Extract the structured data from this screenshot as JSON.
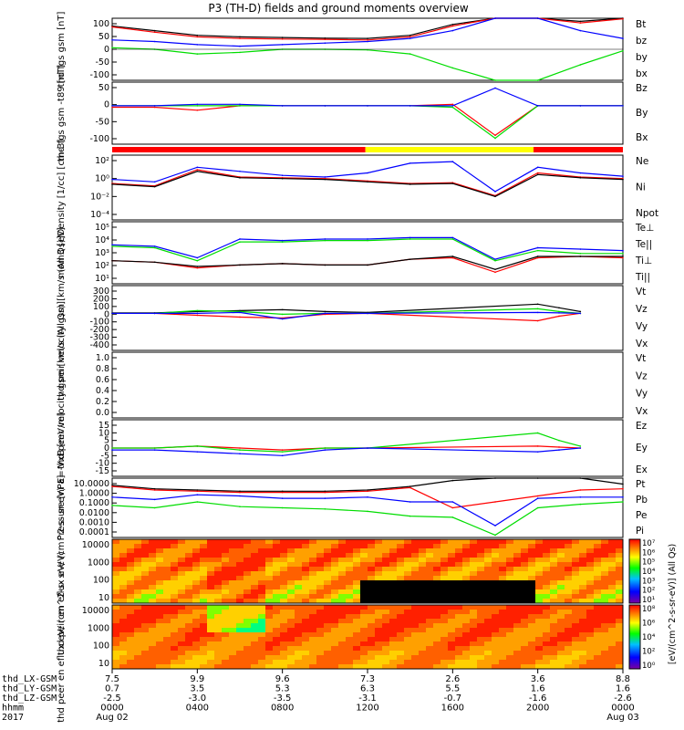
{
  "title": "P3 (TH-D) fields and ground moments overview",
  "colors": {
    "black": "#000000",
    "red": "#ff0000",
    "green": "#00dd00",
    "blue": "#0000ff",
    "yellow": "#ffff00"
  },
  "time_axis": {
    "rows": [
      {
        "name": "thd_LX-GSM",
        "values": [
          "7.5",
          "9.9",
          "9.6",
          "7.3",
          "2.6",
          "3.6",
          "8.8"
        ]
      },
      {
        "name": "thd_LY-GSM",
        "values": [
          "0.7",
          "3.5",
          "5.3",
          "6.3",
          "5.5",
          "1.6",
          "1.6"
        ]
      },
      {
        "name": "thd_LZ-GSM",
        "values": [
          "-2.5",
          "-3.0",
          "-3.5",
          "-3.1",
          "-0.7",
          "-1.6",
          "-2.6"
        ]
      },
      {
        "name": "hhmm",
        "values": [
          "0000",
          "0400",
          "0800",
          "1200",
          "1600",
          "2000",
          "0000"
        ]
      },
      {
        "name": "2017",
        "values": [
          "Aug 02",
          "",
          "",
          "",
          "",
          "",
          "Aug 03"
        ]
      }
    ]
  },
  "chart_data": [
    {
      "type": "line",
      "ylabel": "thd fgs gsm [nT]",
      "yticks": [
        "100",
        "50",
        "0",
        "-50",
        "-100"
      ],
      "ylim": [
        -100,
        100
      ],
      "legend": [
        "Bt",
        "bz",
        "by",
        "bx"
      ],
      "x": [
        0,
        2,
        4,
        6,
        8,
        10,
        12,
        14,
        16,
        18,
        20,
        22,
        24
      ],
      "series": [
        {
          "name": "Bt",
          "color": "#000000",
          "values": [
            75,
            60,
            45,
            40,
            38,
            36,
            35,
            45,
            80,
            100,
            100,
            90,
            100
          ]
        },
        {
          "name": "bz",
          "color": "#ff0000",
          "values": [
            72,
            55,
            40,
            35,
            33,
            32,
            30,
            40,
            75,
            100,
            100,
            85,
            98
          ]
        },
        {
          "name": "by",
          "color": "#00dd00",
          "values": [
            5,
            0,
            -15,
            -10,
            0,
            0,
            -2,
            -15,
            -60,
            -100,
            -100,
            -50,
            -5
          ]
        },
        {
          "name": "bx",
          "color": "#0000ff",
          "values": [
            30,
            25,
            15,
            10,
            15,
            20,
            25,
            35,
            60,
            100,
            100,
            60,
            35
          ]
        }
      ]
    },
    {
      "type": "line",
      "ylabel": "thd fgs gsm -t89 [nT]",
      "yticks": [
        "50",
        "0",
        "-50",
        "-100"
      ],
      "ylim": [
        -130,
        80
      ],
      "legend": [
        "Bz",
        "By",
        "Bx"
      ],
      "x": [
        0,
        2,
        4,
        6,
        8,
        10,
        12,
        14,
        16,
        18,
        20,
        22,
        24
      ],
      "series": [
        {
          "name": "Bz",
          "color": "#ff0000",
          "values": [
            -5,
            -5,
            -15,
            0,
            0,
            0,
            0,
            0,
            5,
            -100,
            0,
            0,
            0
          ]
        },
        {
          "name": "By",
          "color": "#00dd00",
          "values": [
            0,
            0,
            0,
            0,
            0,
            0,
            0,
            0,
            -5,
            -110,
            0,
            0,
            0
          ]
        },
        {
          "name": "Bx",
          "color": "#0000ff",
          "values": [
            0,
            0,
            5,
            5,
            0,
            0,
            0,
            0,
            0,
            60,
            0,
            0,
            0
          ]
        }
      ]
    },
    {
      "type": "line",
      "ylabel": "Density [1/cc] [cm-3]",
      "yticks": [
        "10²",
        "10⁰",
        "10⁻²",
        "10⁻⁴"
      ],
      "legend": [
        "Ne",
        "Ni",
        "Npot"
      ],
      "x": [
        0,
        2,
        4,
        6,
        8,
        10,
        12,
        14,
        16,
        18,
        20,
        22,
        24
      ],
      "series": [
        {
          "name": "Ne",
          "color": "#ff0000",
          "values": [
            -0.5,
            -0.8,
            1.2,
            0.3,
            0.2,
            0.1,
            -0.2,
            -0.5,
            -0.4,
            -2.0,
            0.8,
            0.3,
            0.1
          ]
        },
        {
          "name": "Ni",
          "color": "#000000",
          "values": [
            -0.6,
            -0.9,
            1.0,
            0.2,
            0.1,
            0.0,
            -0.3,
            -0.6,
            -0.5,
            -2.1,
            0.6,
            0.2,
            0.0
          ]
        },
        {
          "name": "Npot",
          "color": "#0000ff",
          "values": [
            0.0,
            -0.3,
            1.5,
            1.0,
            0.5,
            0.3,
            0.8,
            2.0,
            2.2,
            -1.5,
            1.5,
            0.8,
            0.4
          ]
        }
      ]
    },
    {
      "type": "line",
      "ylabel": "mom3 [eV]",
      "yticks": [
        "10⁵",
        "10⁴",
        "10³",
        "10²",
        "10¹"
      ],
      "legend": [
        "Te⊥",
        "Te||",
        "Ti⊥",
        "Ti||"
      ],
      "x": [
        0,
        2,
        4,
        6,
        8,
        10,
        12,
        14,
        16,
        18,
        20,
        22,
        24
      ],
      "series": [
        {
          "name": "Te⊥",
          "color": "#ff0000",
          "values": [
            2.3,
            2.2,
            1.8,
            2.0,
            2.1,
            2.0,
            2.0,
            2.4,
            2.5,
            1.5,
            2.5,
            2.6,
            2.5
          ]
        },
        {
          "name": "Te||",
          "color": "#000000",
          "values": [
            2.3,
            2.2,
            1.9,
            2.0,
            2.1,
            2.0,
            2.0,
            2.4,
            2.6,
            1.7,
            2.6,
            2.6,
            2.6
          ]
        },
        {
          "name": "Ti⊥",
          "color": "#0000ff",
          "values": [
            3.4,
            3.3,
            2.5,
            3.8,
            3.7,
            3.8,
            3.8,
            3.9,
            3.9,
            2.4,
            3.2,
            3.1,
            3.0
          ]
        },
        {
          "name": "Ti||",
          "color": "#00dd00",
          "values": [
            3.3,
            3.2,
            2.3,
            3.6,
            3.6,
            3.7,
            3.7,
            3.8,
            3.8,
            2.3,
            3.0,
            2.8,
            2.8
          ]
        }
      ]
    },
    {
      "type": "line",
      "ylabel": "thd peir velocity gsm [km/s (All Qs)]",
      "yticks": [
        "300",
        "200",
        "100",
        "0",
        "-100",
        "-200",
        "-300",
        "-400"
      ],
      "ylim": [
        -400,
        300
      ],
      "legend": [
        "Vt",
        "Vz",
        "Vy",
        "Vx"
      ],
      "x": [
        0,
        2,
        4,
        6,
        8,
        10,
        12,
        20,
        21,
        22
      ],
      "series": [
        {
          "name": "Vt",
          "color": "#000000",
          "values": [
            5,
            5,
            20,
            30,
            40,
            20,
            10,
            100,
            60,
            20
          ]
        },
        {
          "name": "Vz",
          "color": "#ff0000",
          "values": [
            0,
            0,
            -20,
            -40,
            -50,
            -10,
            0,
            -80,
            -30,
            0
          ]
        },
        {
          "name": "Vy",
          "color": "#00dd00",
          "values": [
            0,
            0,
            30,
            20,
            -10,
            0,
            0,
            50,
            20,
            0
          ]
        },
        {
          "name": "Vx",
          "color": "#0000ff",
          "values": [
            0,
            0,
            0,
            10,
            -60,
            0,
            0,
            10,
            5,
            0
          ]
        }
      ]
    },
    {
      "type": "line",
      "ylabel": "thd peer velocity gsm [km/s (All Qs)]",
      "yticks": [
        "1.0",
        "0.8",
        "0.6",
        "0.4",
        "0.2",
        "0.0"
      ],
      "ylim": [
        0,
        1
      ],
      "legend": [
        "Vt",
        "Vz",
        "Vy",
        "Vx"
      ],
      "x": [],
      "series": []
    },
    {
      "type": "line",
      "ylabel": "E=-VxB [mV/m]",
      "yticks": [
        "15",
        "10",
        "5",
        "0",
        "-5",
        "-10",
        "-15"
      ],
      "ylim": [
        -15,
        15
      ],
      "legend": [
        "Ez",
        "Ey",
        "Ex"
      ],
      "x": [
        0,
        2,
        4,
        6,
        8,
        10,
        12,
        20,
        21,
        22
      ],
      "series": [
        {
          "name": "Ez",
          "color": "#ff0000",
          "values": [
            0,
            0,
            1,
            0,
            -1,
            0,
            0,
            1,
            0.5,
            0
          ]
        },
        {
          "name": "Ey",
          "color": "#00dd00",
          "values": [
            0,
            0,
            1,
            -1,
            -2,
            0,
            0,
            8,
            4,
            1
          ]
        },
        {
          "name": "Ex",
          "color": "#0000ff",
          "values": [
            -1,
            -1,
            -2,
            -3,
            -4,
            -1,
            0,
            -2,
            -1,
            0
          ]
        }
      ]
    },
    {
      "type": "line",
      "ylabel": "Pressure [nPa]",
      "yticks": [
        "10.0000",
        "1.0000",
        "0.1000",
        "0.0100",
        "0.0010",
        "0.0001"
      ],
      "legend": [
        "Pt",
        "Pb",
        "Pe",
        "Pi"
      ],
      "x": [
        0,
        2,
        4,
        6,
        8,
        10,
        12,
        14,
        16,
        18,
        20,
        22,
        24
      ],
      "series": [
        {
          "name": "Pt",
          "color": "#000000",
          "values": [
            0.4,
            0.1,
            0.0,
            -0.1,
            -0.1,
            -0.1,
            0.0,
            0.3,
            0.8,
            1.5,
            1.5,
            1.0,
            0.5
          ]
        },
        {
          "name": "Pb",
          "color": "#ff0000",
          "values": [
            0.3,
            0.0,
            -0.1,
            -0.2,
            -0.2,
            -0.2,
            -0.1,
            0.2,
            -1.5,
            -1.0,
            -0.5,
            0.0,
            0.1
          ]
        },
        {
          "name": "Pe",
          "color": "#00dd00",
          "values": [
            -1.3,
            -1.5,
            -1.0,
            -1.4,
            -1.5,
            -1.6,
            -1.8,
            -2.2,
            -2.3,
            -3.8,
            -1.5,
            -1.2,
            -1.0
          ]
        },
        {
          "name": "Pi",
          "color": "#0000ff",
          "values": [
            -0.6,
            -0.8,
            -0.4,
            -0.5,
            -0.7,
            -0.7,
            -0.6,
            -1.0,
            -1.0,
            -3.0,
            -0.7,
            -0.6,
            -0.6
          ]
        }
      ]
    },
    {
      "type": "heatmap",
      "ylabel": "thd peir en eflux eV/ (cm^2-s- sr-eV)",
      "yticks": [
        "10000",
        "1000",
        "100",
        "10"
      ],
      "colorbar_label": "[eV/(cm^2-s-sr-eV)] (All Qs)",
      "colorbar_ticks": [
        "10⁷",
        "10⁶",
        "10⁵",
        "10⁴",
        "10³",
        "10²",
        "10¹"
      ]
    },
    {
      "type": "heatmap",
      "ylabel": "thd peer en eflux eV/ (cm^2-s- sr-eV)",
      "yticks": [
        "10000",
        "1000",
        "100",
        "10"
      ],
      "colorbar_label": "[eV/(cm^2-s-sr-eV)] (All Qs)",
      "colorbar_ticks": [
        "10⁸",
        "10⁶",
        "10⁴",
        "10²",
        "10⁰"
      ]
    }
  ]
}
